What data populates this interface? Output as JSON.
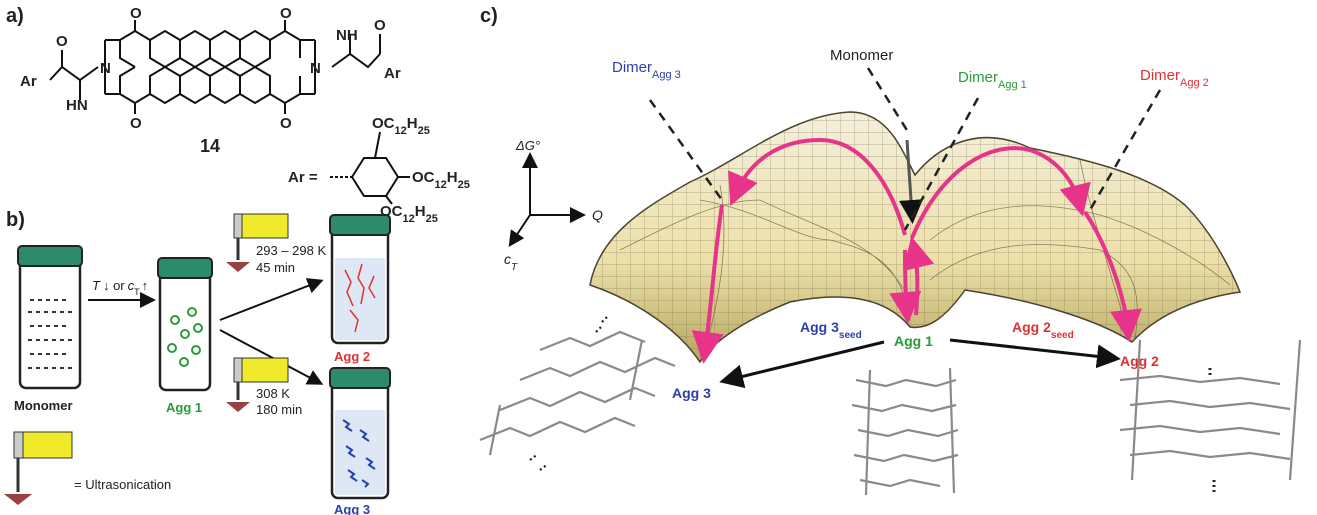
{
  "panel_a": {
    "label": "a)",
    "left_aryl": "Ar",
    "left_amine": "HN",
    "right_amine": "NH",
    "right_aryl": "Ar",
    "imide_nitrogens": [
      "N",
      "N"
    ],
    "oxygens": [
      "O",
      "O",
      "O",
      "O",
      "O",
      "O"
    ],
    "compound_number": "14",
    "aryl_definition": "Ar =",
    "substituents": [
      {
        "main": "OC",
        "n1": "12",
        "h": "H",
        "n2": "25"
      },
      {
        "main": "OC",
        "n1": "12",
        "h": "H",
        "n2": "25"
      },
      {
        "main": "OC",
        "n1": "12",
        "h": "H",
        "n2": "25"
      }
    ]
  },
  "panel_b": {
    "label": "b)",
    "condition": {
      "t": "T",
      "mid": "↓ or",
      "c": "c",
      "sub": "T",
      "end": "↑"
    },
    "sonication_1": [
      "293 – 298 K",
      "45 min"
    ],
    "sonication_2": [
      "308 K",
      "180 min"
    ],
    "vials": [
      "Monomer",
      "Agg 1",
      "Agg 2",
      "Agg 3"
    ],
    "legend": "= Ultrasonication"
  },
  "panel_c": {
    "label": "c)",
    "axes": {
      "energy": "ΔG°",
      "coordinate": "Q",
      "concentration": {
        "main": "c",
        "sub": "T"
      }
    },
    "dimer_agg3": {
      "main": "Dimer",
      "sub": "Agg 3"
    },
    "monomer": "Monomer",
    "dimer_agg1": {
      "main": "Dimer",
      "sub": "Agg 1"
    },
    "dimer_agg2": {
      "main": "Dimer",
      "sub": "Agg 2"
    },
    "agg3_seed": {
      "main": "Agg 3",
      "sub": "seed"
    },
    "agg1": "Agg 1",
    "agg2_seed": {
      "main": "Agg 2",
      "sub": "seed"
    },
    "agg2": "Agg 2",
    "agg3": "Agg 3"
  }
}
